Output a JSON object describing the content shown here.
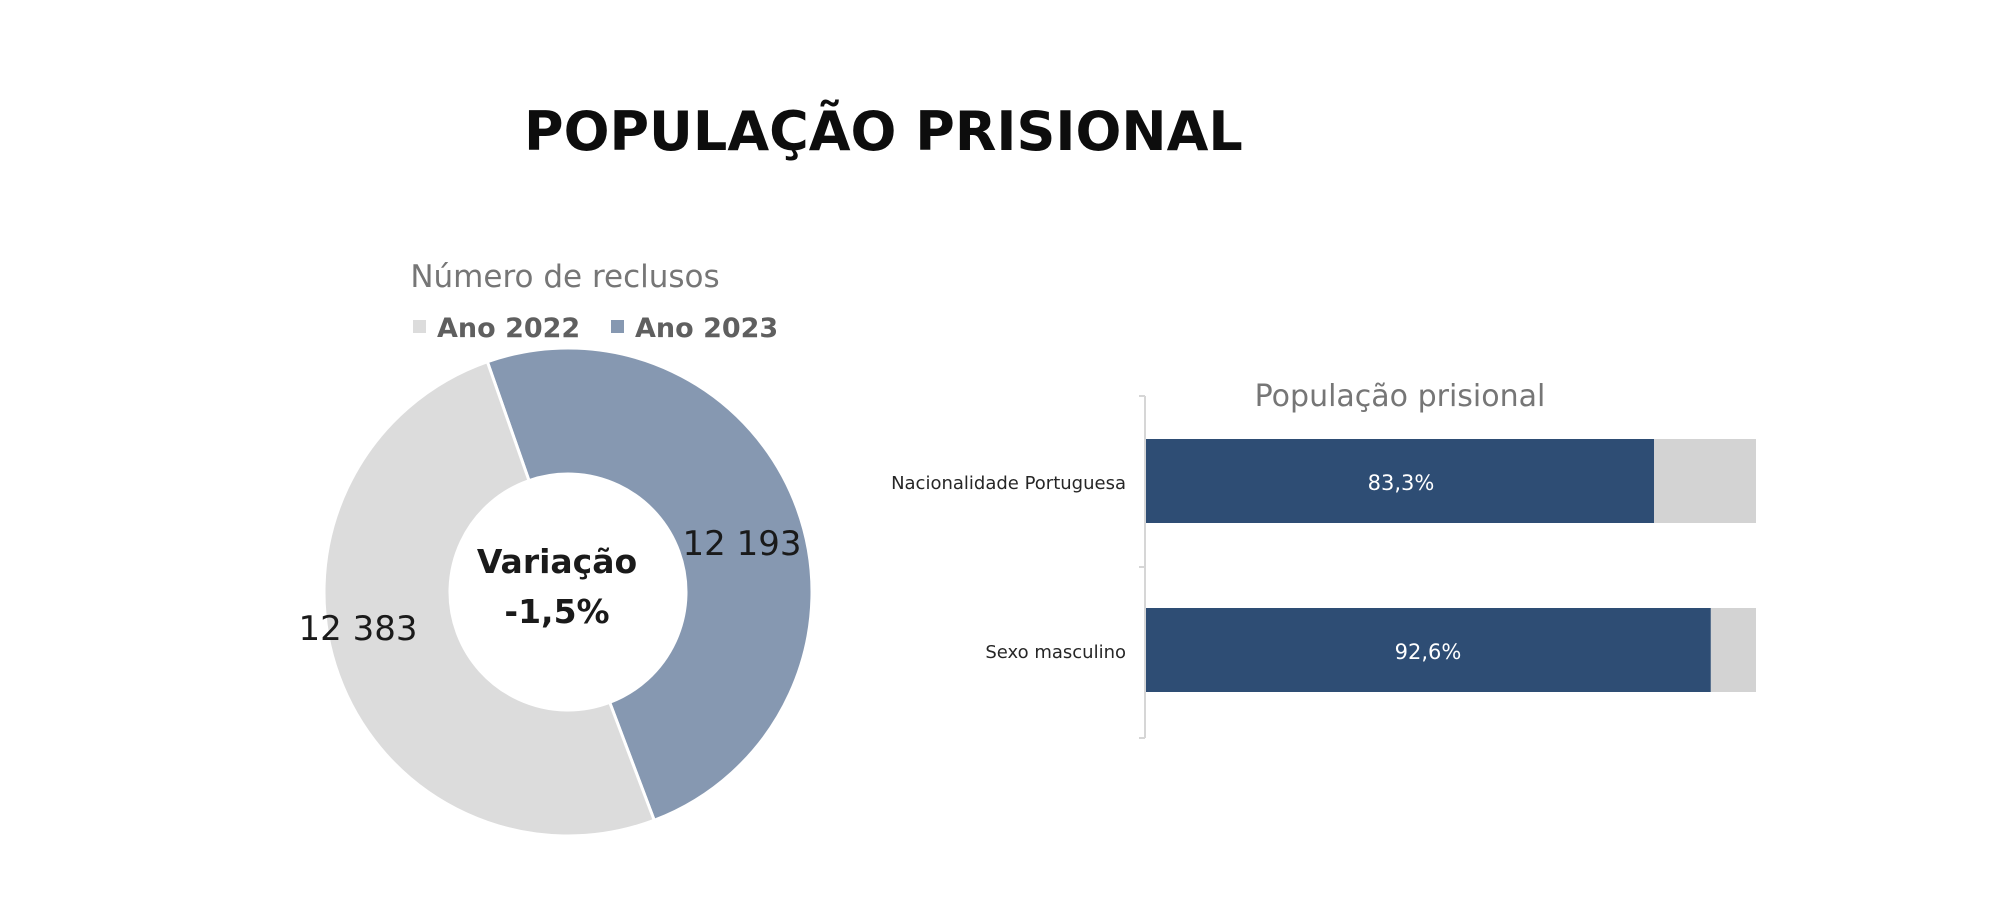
{
  "page": {
    "title": "POPULAÇÃO PRISIONAL"
  },
  "chart_data": [
    {
      "type": "pie",
      "variant": "donut",
      "title": "Número de reclusos",
      "legend_position": "top",
      "series": [
        {
          "name": "Ano 2022",
          "value": 12383,
          "label": "12 383",
          "color": "#dcdcdc"
        },
        {
          "name": "Ano 2023",
          "value": 12193,
          "label": "12 193",
          "color": "#8698b1"
        }
      ],
      "center_label": [
        "Variação",
        "-1,5%"
      ]
    },
    {
      "type": "bar",
      "orientation": "horizontal",
      "stacked": "100%",
      "title": "População prisional",
      "categories": [
        "Nacionalidade Portuguesa",
        "Sexo masculino"
      ],
      "series": [
        {
          "values": [
            83.3,
            92.6
          ],
          "labels": [
            "83,3%",
            "92,6%"
          ],
          "color": "#2e4d74"
        },
        {
          "values": [
            16.7,
            7.4
          ],
          "color": "#d3d3d3"
        }
      ],
      "xlim": [
        0,
        100
      ],
      "grid": false
    }
  ]
}
